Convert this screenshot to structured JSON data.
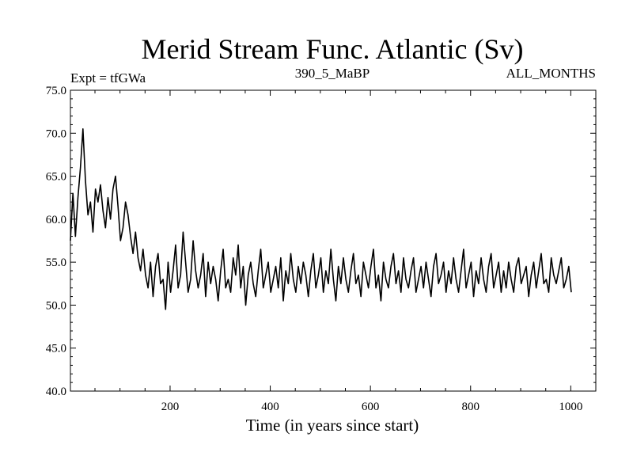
{
  "chart_data": {
    "type": "line",
    "title": "Merid Stream Func. Atlantic (Sv)",
    "subtitle_left": "Expt = tfGWa",
    "subtitle_center": "390_5_MaBP",
    "subtitle_right": "ALL_MONTHS",
    "xlabel": "Time (in years since start)",
    "ylabel": "",
    "xlim": [
      1,
      1050
    ],
    "ylim": [
      40.0,
      75.0
    ],
    "xticks": [
      200,
      400,
      600,
      800,
      1000
    ],
    "yticks": [
      "40.0",
      "45.0",
      "50.0",
      "55.0",
      "60.0",
      "65.0",
      "70.0",
      "75.0"
    ],
    "grid": false,
    "line_color": "#000000",
    "series": [
      {
        "x_start": 1,
        "x_step": 5,
        "values": [
          57.5,
          63.0,
          58.0,
          62.5,
          66.0,
          70.5,
          64.5,
          60.5,
          62.0,
          58.5,
          63.5,
          62.0,
          64.0,
          61.0,
          59.0,
          62.5,
          60.0,
          63.5,
          65.0,
          61.5,
          57.5,
          59.0,
          62.0,
          60.5,
          58.0,
          56.0,
          58.5,
          55.5,
          54.0,
          56.5,
          53.5,
          52.0,
          55.0,
          51.0,
          54.5,
          56.0,
          52.5,
          53.0,
          49.5,
          55.0,
          51.5,
          54.0,
          57.0,
          52.0,
          53.5,
          58.5,
          55.0,
          51.5,
          53.0,
          57.5,
          54.0,
          52.0,
          53.5,
          56.0,
          51.0,
          55.0,
          52.5,
          54.5,
          53.0,
          50.5,
          54.0,
          56.5,
          52.0,
          53.0,
          51.5,
          55.5,
          53.5,
          57.0,
          52.0,
          54.5,
          50.0,
          53.5,
          55.0,
          52.5,
          51.0,
          54.0,
          56.5,
          52.0,
          53.5,
          55.0,
          51.5,
          53.0,
          54.5,
          52.0,
          55.5,
          50.5,
          54.0,
          52.5,
          56.0,
          53.0,
          51.5,
          54.5,
          52.5,
          55.0,
          53.5,
          51.0,
          54.0,
          56.0,
          52.0,
          53.5,
          55.5,
          51.5,
          54.0,
          52.5,
          56.5,
          53.0,
          50.5,
          54.5,
          52.5,
          55.5,
          53.0,
          51.5,
          54.0,
          56.0,
          52.5,
          53.5,
          51.0,
          55.0,
          53.5,
          52.0,
          54.5,
          56.5,
          52.0,
          53.5,
          50.5,
          55.0,
          53.0,
          52.0,
          54.5,
          56.0,
          52.5,
          54.0,
          51.5,
          55.5,
          53.0,
          52.0,
          54.0,
          55.5,
          51.5,
          53.0,
          54.5,
          52.0,
          55.0,
          53.0,
          51.0,
          54.5,
          56.0,
          52.5,
          53.5,
          55.0,
          51.5,
          54.0,
          52.5,
          55.5,
          53.0,
          51.5,
          54.0,
          56.5,
          52.0,
          53.5,
          55.0,
          51.0,
          54.0,
          52.5,
          55.5,
          53.0,
          51.5,
          54.5,
          56.0,
          52.0,
          53.5,
          55.0,
          51.5,
          54.0,
          52.0,
          55.0,
          53.0,
          51.5,
          54.5,
          55.5,
          52.5,
          53.5,
          54.5,
          51.0,
          53.5,
          55.0,
          52.0,
          54.0,
          56.0,
          52.5,
          53.0,
          51.5,
          55.5,
          53.5,
          52.5,
          54.0,
          55.5,
          52.0,
          53.0,
          54.5,
          51.5
        ]
      }
    ]
  }
}
